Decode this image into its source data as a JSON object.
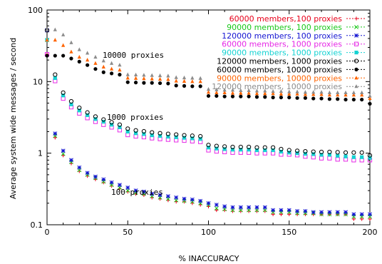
{
  "chart_data": {
    "type": "scatter",
    "title": "",
    "xlabel": "% INACCURACY",
    "ylabel": "Average system wide messages / second",
    "xlim": [
      0,
      200
    ],
    "ylim": [
      0.1,
      100
    ],
    "ylog": true,
    "xticks": [
      "0",
      "50",
      "100",
      "150",
      "200"
    ],
    "yticks": [
      "0.1",
      "1",
      "10",
      "100"
    ],
    "legend_position": "top-right",
    "annotations": [
      "10000 proxies",
      "1000 proxies",
      "100 proxies"
    ],
    "series": [
      {
        "name": "60000 members,100 proxies",
        "color": "#e8001a",
        "marker": "plus",
        "x": [
          0,
          5,
          10,
          15,
          20,
          25,
          30,
          35,
          40,
          45,
          50,
          55,
          60,
          65,
          70,
          75,
          80,
          85,
          90,
          95,
          100,
          105,
          110,
          115,
          120,
          125,
          130,
          135,
          140,
          145,
          150,
          155,
          160,
          165,
          170,
          175,
          180,
          185,
          190,
          195,
          200
        ],
        "y": [
          24,
          1.65,
          0.93,
          0.72,
          0.56,
          0.48,
          0.43,
          0.39,
          0.35,
          0.32,
          0.29,
          0.27,
          0.26,
          0.24,
          0.23,
          0.22,
          0.21,
          0.21,
          0.2,
          0.19,
          0.18,
          0.16,
          0.16,
          0.155,
          0.155,
          0.155,
          0.155,
          0.155,
          0.14,
          0.14,
          0.14,
          0.14,
          0.14,
          0.14,
          0.14,
          0.14,
          0.14,
          0.14,
          0.12,
          0.12,
          0.12
        ]
      },
      {
        "name": "90000 members, 100 proxies",
        "color": "#19c819",
        "marker": "x",
        "x": [
          0,
          5,
          10,
          15,
          20,
          25,
          30,
          35,
          40,
          45,
          50,
          55,
          60,
          65,
          70,
          75,
          80,
          85,
          90,
          95,
          100,
          105,
          110,
          115,
          120,
          125,
          130,
          135,
          140,
          145,
          150,
          155,
          160,
          165,
          170,
          175,
          180,
          185,
          190,
          195,
          200
        ],
        "y": [
          38,
          1.75,
          0.98,
          0.75,
          0.58,
          0.5,
          0.45,
          0.4,
          0.36,
          0.33,
          0.3,
          0.28,
          0.27,
          0.25,
          0.24,
          0.23,
          0.22,
          0.215,
          0.21,
          0.2,
          0.19,
          0.17,
          0.165,
          0.16,
          0.16,
          0.16,
          0.16,
          0.16,
          0.15,
          0.15,
          0.15,
          0.145,
          0.145,
          0.145,
          0.14,
          0.14,
          0.14,
          0.14,
          0.13,
          0.13,
          0.13
        ]
      },
      {
        "name": "120000 members, 100 proxies",
        "color": "#1414d2",
        "marker": "star",
        "x": [
          0,
          5,
          10,
          15,
          20,
          25,
          30,
          35,
          40,
          45,
          50,
          55,
          60,
          65,
          70,
          75,
          80,
          85,
          90,
          95,
          100,
          105,
          110,
          115,
          120,
          125,
          130,
          135,
          140,
          145,
          150,
          155,
          160,
          165,
          170,
          175,
          180,
          185,
          190,
          195,
          200
        ],
        "y": [
          52,
          1.88,
          1.08,
          0.8,
          0.63,
          0.53,
          0.47,
          0.43,
          0.39,
          0.36,
          0.33,
          0.3,
          0.29,
          0.27,
          0.26,
          0.25,
          0.24,
          0.23,
          0.225,
          0.215,
          0.2,
          0.19,
          0.18,
          0.175,
          0.175,
          0.175,
          0.175,
          0.175,
          0.16,
          0.16,
          0.16,
          0.155,
          0.155,
          0.15,
          0.15,
          0.15,
          0.15,
          0.15,
          0.14,
          0.14,
          0.14
        ]
      },
      {
        "name": "60000 members, 1000 proxies",
        "color": "#e628e6",
        "marker": "square",
        "x": [
          0,
          5,
          10,
          15,
          20,
          25,
          30,
          35,
          40,
          45,
          50,
          55,
          60,
          65,
          70,
          75,
          80,
          85,
          90,
          95,
          100,
          105,
          110,
          115,
          120,
          125,
          130,
          135,
          140,
          145,
          150,
          155,
          160,
          165,
          170,
          175,
          180,
          185,
          190,
          195,
          200
        ],
        "y": [
          24,
          10.2,
          5.8,
          4.4,
          3.6,
          3.1,
          2.75,
          2.5,
          2.3,
          2.1,
          1.8,
          1.72,
          1.68,
          1.62,
          1.58,
          1.55,
          1.52,
          1.5,
          1.47,
          1.44,
          1.1,
          1.06,
          1.04,
          1.02,
          1.02,
          1.02,
          1.0,
          1.0,
          1.0,
          0.96,
          0.96,
          0.94,
          0.9,
          0.88,
          0.85,
          0.85,
          0.82,
          0.82,
          0.8,
          0.8,
          0.8
        ]
      },
      {
        "name": "90000 members, 1000 proxies",
        "color": "#14d2d2",
        "marker": "filled-square",
        "x": [
          0,
          5,
          10,
          15,
          20,
          25,
          30,
          35,
          40,
          45,
          50,
          55,
          60,
          65,
          70,
          75,
          80,
          85,
          90,
          95,
          100,
          105,
          110,
          115,
          120,
          125,
          130,
          135,
          140,
          145,
          150,
          155,
          160,
          165,
          170,
          175,
          180,
          185,
          190,
          195,
          200
        ],
        "y": [
          38,
          11.2,
          6.4,
          4.8,
          3.95,
          3.4,
          3.0,
          2.75,
          2.5,
          2.3,
          2.0,
          1.9,
          1.85,
          1.78,
          1.74,
          1.7,
          1.67,
          1.64,
          1.61,
          1.58,
          1.2,
          1.16,
          1.14,
          1.12,
          1.12,
          1.12,
          1.1,
          1.1,
          1.1,
          1.05,
          1.02,
          1.0,
          0.98,
          0.97,
          0.95,
          0.95,
          0.92,
          0.9,
          0.88,
          0.88,
          0.86
        ]
      },
      {
        "name": "120000 members, 1000 proxies",
        "color": "#000000",
        "marker": "circle",
        "x": [
          0,
          5,
          10,
          15,
          20,
          25,
          30,
          35,
          40,
          45,
          50,
          55,
          60,
          65,
          70,
          75,
          80,
          85,
          90,
          95,
          100,
          105,
          110,
          115,
          120,
          125,
          130,
          135,
          140,
          145,
          150,
          155,
          160,
          165,
          170,
          175,
          180,
          185,
          190,
          195,
          200
        ],
        "y": [
          52,
          12.5,
          7.0,
          5.3,
          4.3,
          3.7,
          3.25,
          2.95,
          2.7,
          2.5,
          2.2,
          2.08,
          2.02,
          1.95,
          1.9,
          1.86,
          1.82,
          1.78,
          1.75,
          1.72,
          1.3,
          1.26,
          1.24,
          1.22,
          1.22,
          1.22,
          1.2,
          1.2,
          1.2,
          1.14,
          1.1,
          1.08,
          1.06,
          1.05,
          1.04,
          1.04,
          1.03,
          1.02,
          1.02,
          1.02,
          0.93
        ]
      },
      {
        "name": "60000 members, 10000 proxies",
        "color": "#000000",
        "marker": "filled-circle",
        "x": [
          0,
          5,
          10,
          15,
          20,
          25,
          30,
          35,
          40,
          45,
          50,
          55,
          60,
          65,
          70,
          75,
          80,
          85,
          90,
          95,
          100,
          105,
          110,
          115,
          120,
          125,
          130,
          135,
          140,
          145,
          150,
          155,
          160,
          165,
          170,
          175,
          180,
          185,
          190,
          195,
          200
        ],
        "y": [
          23,
          23,
          23,
          21,
          19,
          17,
          15,
          13.5,
          13,
          12.5,
          9.8,
          9.7,
          9.6,
          9.6,
          9.5,
          9.4,
          8.8,
          8.7,
          8.6,
          8.6,
          6.3,
          6.3,
          6.2,
          6.2,
          6.2,
          6.2,
          6.1,
          6.1,
          6.0,
          6.0,
          6.0,
          5.9,
          5.9,
          5.8,
          5.8,
          5.7,
          5.7,
          5.6,
          5.6,
          5.6,
          4.9
        ]
      },
      {
        "name": "90000 members, 10000 proxies",
        "color": "#ff6400",
        "marker": "triangle",
        "x": [
          0,
          5,
          10,
          15,
          20,
          25,
          30,
          35,
          40,
          45,
          50,
          55,
          60,
          65,
          70,
          75,
          80,
          85,
          90,
          95,
          100,
          105,
          110,
          115,
          120,
          125,
          130,
          135,
          140,
          145,
          150,
          155,
          160,
          165,
          170,
          175,
          180,
          185,
          190,
          195,
          200
        ],
        "y": [
          38,
          38,
          32,
          26,
          22,
          20,
          18,
          16,
          15,
          14.5,
          11.2,
          11.1,
          11.0,
          10.9,
          10.8,
          10.7,
          10.2,
          10.1,
          10.0,
          10.0,
          7.1,
          7.0,
          7.0,
          6.9,
          6.9,
          6.9,
          6.8,
          6.8,
          6.8,
          6.7,
          6.7,
          6.7,
          6.6,
          6.6,
          6.6,
          6.5,
          6.5,
          6.5,
          6.5,
          6.5,
          5.8
        ]
      },
      {
        "name": "120000 members, 10000 proxies",
        "color": "#8c8c8c",
        "marker": "dot",
        "x": [
          0,
          5,
          10,
          15,
          20,
          25,
          30,
          35,
          40,
          45,
          50,
          55,
          60,
          65,
          70,
          75,
          80,
          85,
          90,
          95,
          100,
          105,
          110,
          115,
          120,
          125,
          130,
          135,
          140,
          145,
          150,
          155,
          160,
          165,
          170,
          175,
          180,
          185,
          190,
          195,
          200
        ],
        "y": [
          53,
          53,
          45,
          35,
          28,
          25,
          22,
          19.5,
          18,
          17,
          12.5,
          12.4,
          12.3,
          12.2,
          12.1,
          12.0,
          11.4,
          11.3,
          11.2,
          11.1,
          7.8,
          7.7,
          7.6,
          7.6,
          7.5,
          7.5,
          7.4,
          7.4,
          7.3,
          7.3,
          7.2,
          7.2,
          7.1,
          7.1,
          7.1,
          7.0,
          7.0,
          7.0,
          7.0,
          7.0,
          6.3
        ]
      }
    ]
  }
}
